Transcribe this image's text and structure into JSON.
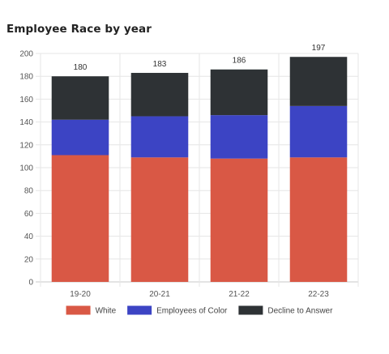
{
  "page": {
    "title": "Employee Race by year"
  },
  "chart_data": {
    "type": "bar",
    "stacked": true,
    "categories": [
      "19-20",
      "20-21",
      "21-22",
      "22-23"
    ],
    "series": [
      {
        "name": "White",
        "color": "#d95845",
        "values": [
          111,
          109,
          108,
          109
        ]
      },
      {
        "name": "Employees of Color",
        "color": "#3c44c4",
        "values": [
          31,
          36,
          38,
          45
        ]
      },
      {
        "name": "Decline to Answer",
        "color": "#2e3235",
        "values": [
          38,
          38,
          40,
          43
        ]
      }
    ],
    "totals": [
      180,
      183,
      186,
      197
    ],
    "ylim": [
      0,
      200
    ],
    "yticks": [
      0,
      20,
      40,
      60,
      80,
      100,
      120,
      140,
      160,
      180,
      200
    ],
    "grid": true,
    "legend_position": "bottom"
  }
}
